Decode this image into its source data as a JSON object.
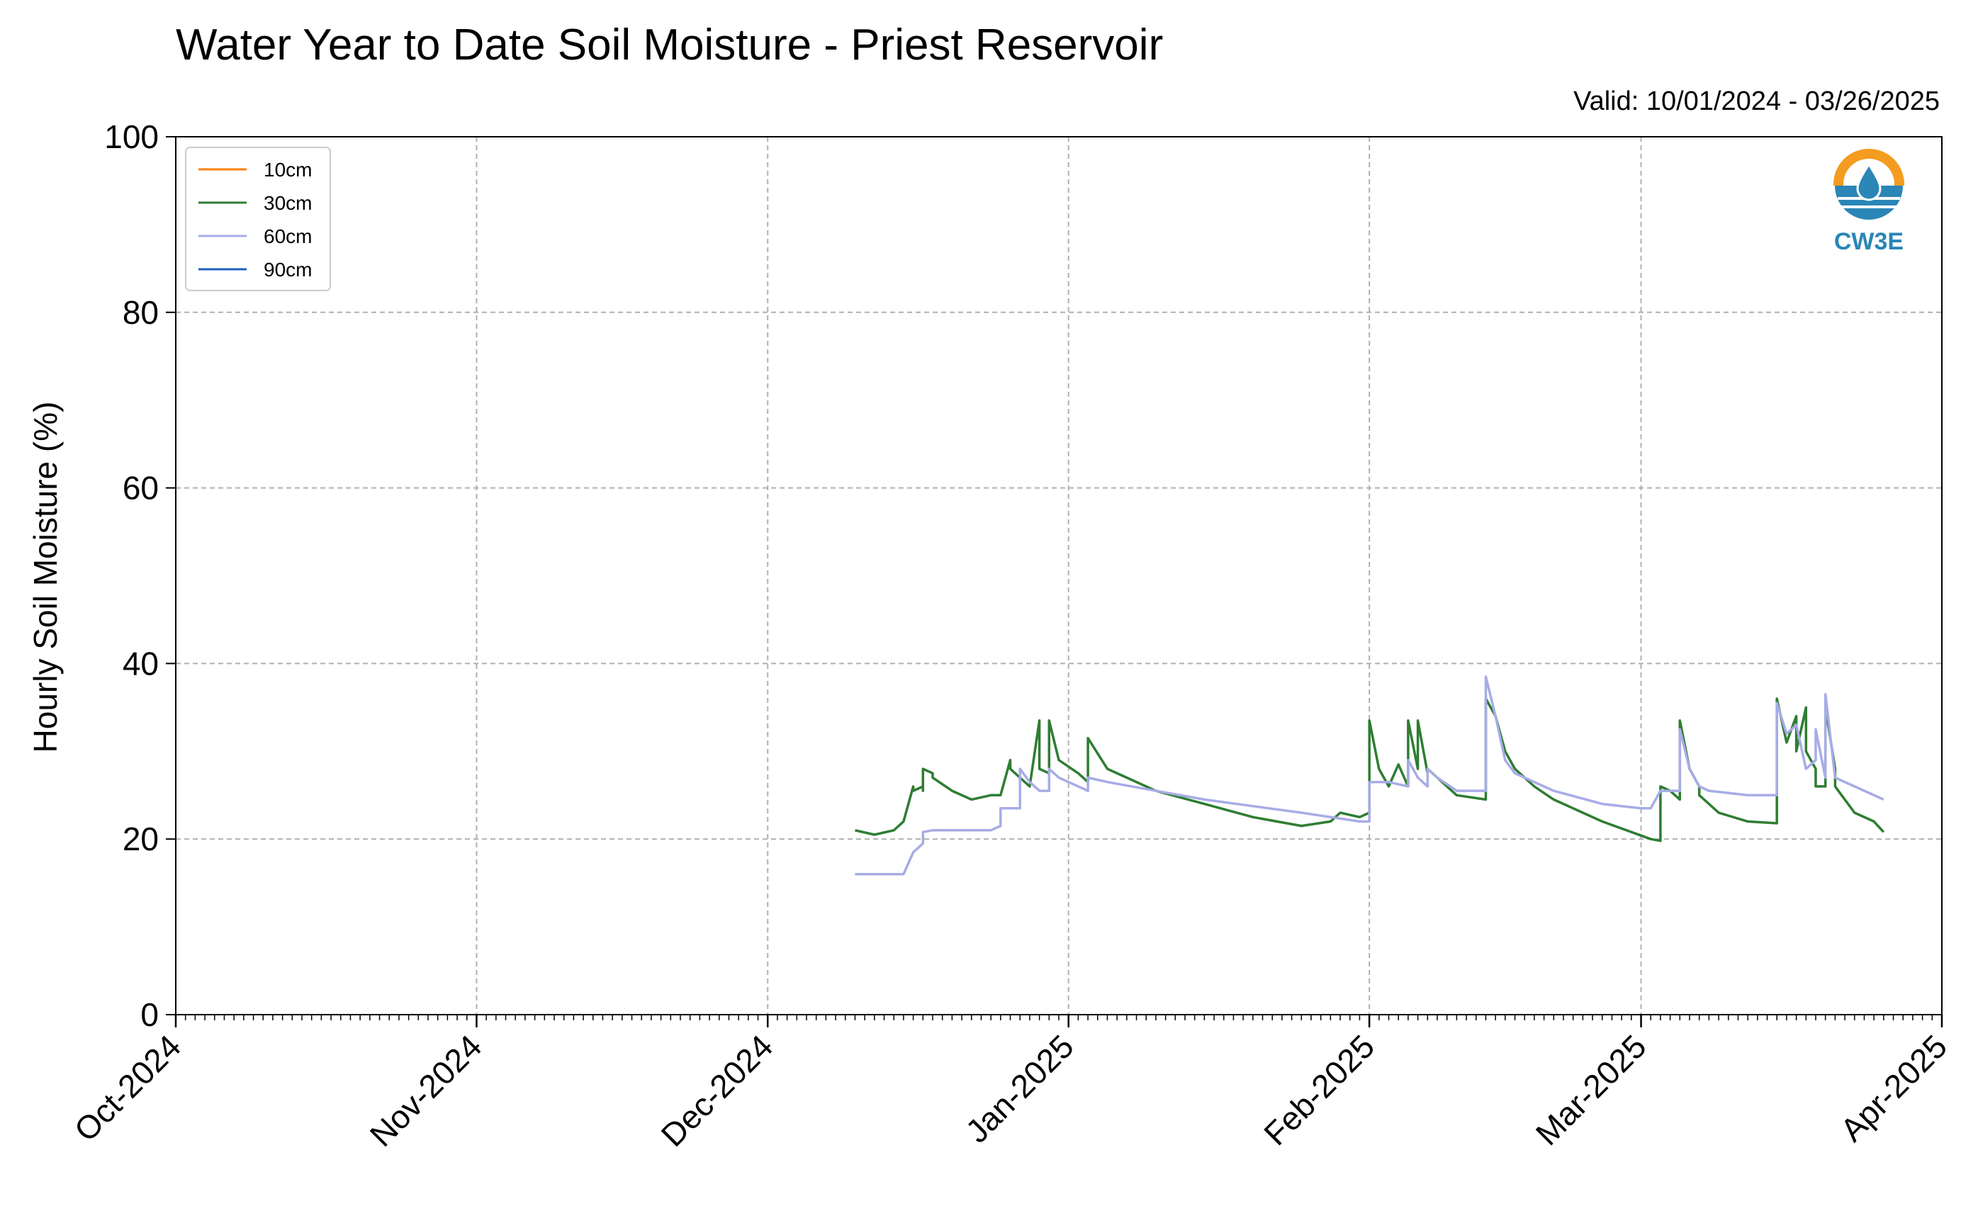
{
  "header": {
    "title": "Water Year to Date Soil Moisture - Priest Reservoir",
    "valid": "Valid: 10/01/2024 - 03/26/2025"
  },
  "logo": {
    "text": "CW3E",
    "icon": "water-drop-sun-icon",
    "colors": {
      "orange": "#f39c1f",
      "blue": "#2a86b7"
    }
  },
  "chart_data": {
    "type": "line",
    "ylabel": "Hourly Soil Moisture (%)",
    "xlabel": "",
    "ylim": [
      0,
      100
    ],
    "yticks": [
      0,
      20,
      40,
      60,
      80,
      100
    ],
    "xlim": [
      "2024-10-01",
      "2025-04-01"
    ],
    "xticks": [
      {
        "date": "2024-10-01",
        "label": "Oct-2024"
      },
      {
        "date": "2024-11-01",
        "label": "Nov-2024"
      },
      {
        "date": "2024-12-01",
        "label": "Dec-2024"
      },
      {
        "date": "2025-01-01",
        "label": "Jan-2025"
      },
      {
        "date": "2025-02-01",
        "label": "Feb-2025"
      },
      {
        "date": "2025-03-01",
        "label": "Mar-2025"
      },
      {
        "date": "2025-04-01",
        "label": "Apr-2025"
      }
    ],
    "grid": true,
    "legend_position": "top-left",
    "series": [
      {
        "name": "10cm",
        "color": "#ff7f0e",
        "x": [],
        "y": []
      },
      {
        "name": "30cm",
        "color": "#2e7d32",
        "x": [
          "2024-12-10",
          "2024-12-12",
          "2024-12-14",
          "2024-12-15",
          "2024-12-16",
          "2024-12-16",
          "2024-12-17",
          "2024-12-17",
          "2024-12-17",
          "2024-12-18",
          "2024-12-18",
          "2024-12-20",
          "2024-12-22",
          "2024-12-24",
          "2024-12-25",
          "2024-12-26",
          "2024-12-26",
          "2024-12-27",
          "2024-12-28",
          "2024-12-29",
          "2024-12-29",
          "2024-12-30",
          "2024-12-30",
          "2024-12-31",
          "2025-01-02",
          "2025-01-03",
          "2025-01-03",
          "2025-01-05",
          "2025-01-10",
          "2025-01-15",
          "2025-01-20",
          "2025-01-25",
          "2025-01-28",
          "2025-01-29",
          "2025-01-31",
          "2025-02-01",
          "2025-02-01",
          "2025-02-02",
          "2025-02-03",
          "2025-02-04",
          "2025-02-05",
          "2025-02-05",
          "2025-02-06",
          "2025-02-06",
          "2025-02-07",
          "2025-02-07",
          "2025-02-08",
          "2025-02-09",
          "2025-02-10",
          "2025-02-13",
          "2025-02-13",
          "2025-02-14",
          "2025-02-15",
          "2025-02-16",
          "2025-02-17",
          "2025-02-18",
          "2025-02-20",
          "2025-02-25",
          "2025-03-02",
          "2025-03-03",
          "2025-03-03",
          "2025-03-04",
          "2025-03-05",
          "2025-03-05",
          "2025-03-06",
          "2025-03-07",
          "2025-03-07",
          "2025-03-08",
          "2025-03-09",
          "2025-03-12",
          "2025-03-15",
          "2025-03-15",
          "2025-03-16",
          "2025-03-17",
          "2025-03-17",
          "2025-03-18",
          "2025-03-18",
          "2025-03-19",
          "2025-03-19",
          "2025-03-20",
          "2025-03-20",
          "2025-03-21",
          "2025-03-21",
          "2025-03-23",
          "2025-03-25",
          "2025-03-26"
        ],
        "y": [
          21,
          20.5,
          21,
          22,
          26,
          25.5,
          26,
          25.5,
          28,
          27.5,
          27,
          25.5,
          24.5,
          25,
          25,
          29,
          28,
          27,
          26,
          33.5,
          28,
          27.5,
          33.5,
          29,
          27.5,
          26.5,
          31.5,
          28,
          25.5,
          24,
          22.5,
          21.5,
          22,
          23,
          22.5,
          23,
          33.5,
          28,
          26,
          28.5,
          26,
          33.5,
          28,
          33.5,
          27.5,
          28,
          27,
          26,
          25,
          24.5,
          36,
          34,
          30,
          28,
          27,
          26,
          24.5,
          22,
          20,
          19.8,
          26,
          25.5,
          24.5,
          33.5,
          28,
          26,
          25,
          24,
          23,
          22,
          21.8,
          36,
          31,
          34,
          30,
          35,
          30,
          28,
          26,
          26,
          35,
          28,
          26,
          23,
          22,
          20.8
        ]
      },
      {
        "name": "60cm",
        "color": "#a7ace6",
        "x": [
          "2024-12-10",
          "2024-12-12",
          "2024-12-15",
          "2024-12-16",
          "2024-12-17",
          "2024-12-17",
          "2024-12-18",
          "2024-12-20",
          "2024-12-24",
          "2024-12-25",
          "2024-12-25",
          "2024-12-27",
          "2024-12-27",
          "2024-12-28",
          "2024-12-29",
          "2024-12-30",
          "2024-12-30",
          "2024-12-31",
          "2025-01-02",
          "2025-01-03",
          "2025-01-03",
          "2025-01-05",
          "2025-01-15",
          "2025-01-25",
          "2025-01-31",
          "2025-02-01",
          "2025-02-01",
          "2025-02-03",
          "2025-02-05",
          "2025-02-05",
          "2025-02-06",
          "2025-02-07",
          "2025-02-07",
          "2025-02-08",
          "2025-02-10",
          "2025-02-13",
          "2025-02-13",
          "2025-02-14",
          "2025-02-15",
          "2025-02-16",
          "2025-02-20",
          "2025-02-25",
          "2025-03-01",
          "2025-03-02",
          "2025-03-03",
          "2025-03-05",
          "2025-03-05",
          "2025-03-06",
          "2025-03-07",
          "2025-03-08",
          "2025-03-12",
          "2025-03-15",
          "2025-03-15",
          "2025-03-16",
          "2025-03-17",
          "2025-03-18",
          "2025-03-19",
          "2025-03-19",
          "2025-03-20",
          "2025-03-20",
          "2025-03-21",
          "2025-03-23",
          "2025-03-26"
        ],
        "y": [
          16,
          16,
          16,
          18.5,
          19.5,
          20.8,
          21,
          21,
          21,
          21.5,
          23.5,
          23.5,
          28,
          26.5,
          25.5,
          25.5,
          28,
          27,
          26,
          25.5,
          27,
          26.5,
          24.5,
          23,
          22,
          22,
          26.5,
          26.5,
          26,
          29,
          27,
          26,
          28,
          27,
          25.5,
          25.5,
          38.5,
          34,
          29,
          27.5,
          25.5,
          24,
          23.5,
          23.5,
          25.5,
          25.5,
          32.5,
          28,
          26,
          25.5,
          25,
          25,
          35.5,
          32,
          33,
          28,
          29,
          32.5,
          27,
          36.5,
          27,
          26,
          24.5
        ]
      },
      {
        "name": "90cm",
        "color": "#1f5fbf",
        "x": [],
        "y": []
      }
    ]
  }
}
